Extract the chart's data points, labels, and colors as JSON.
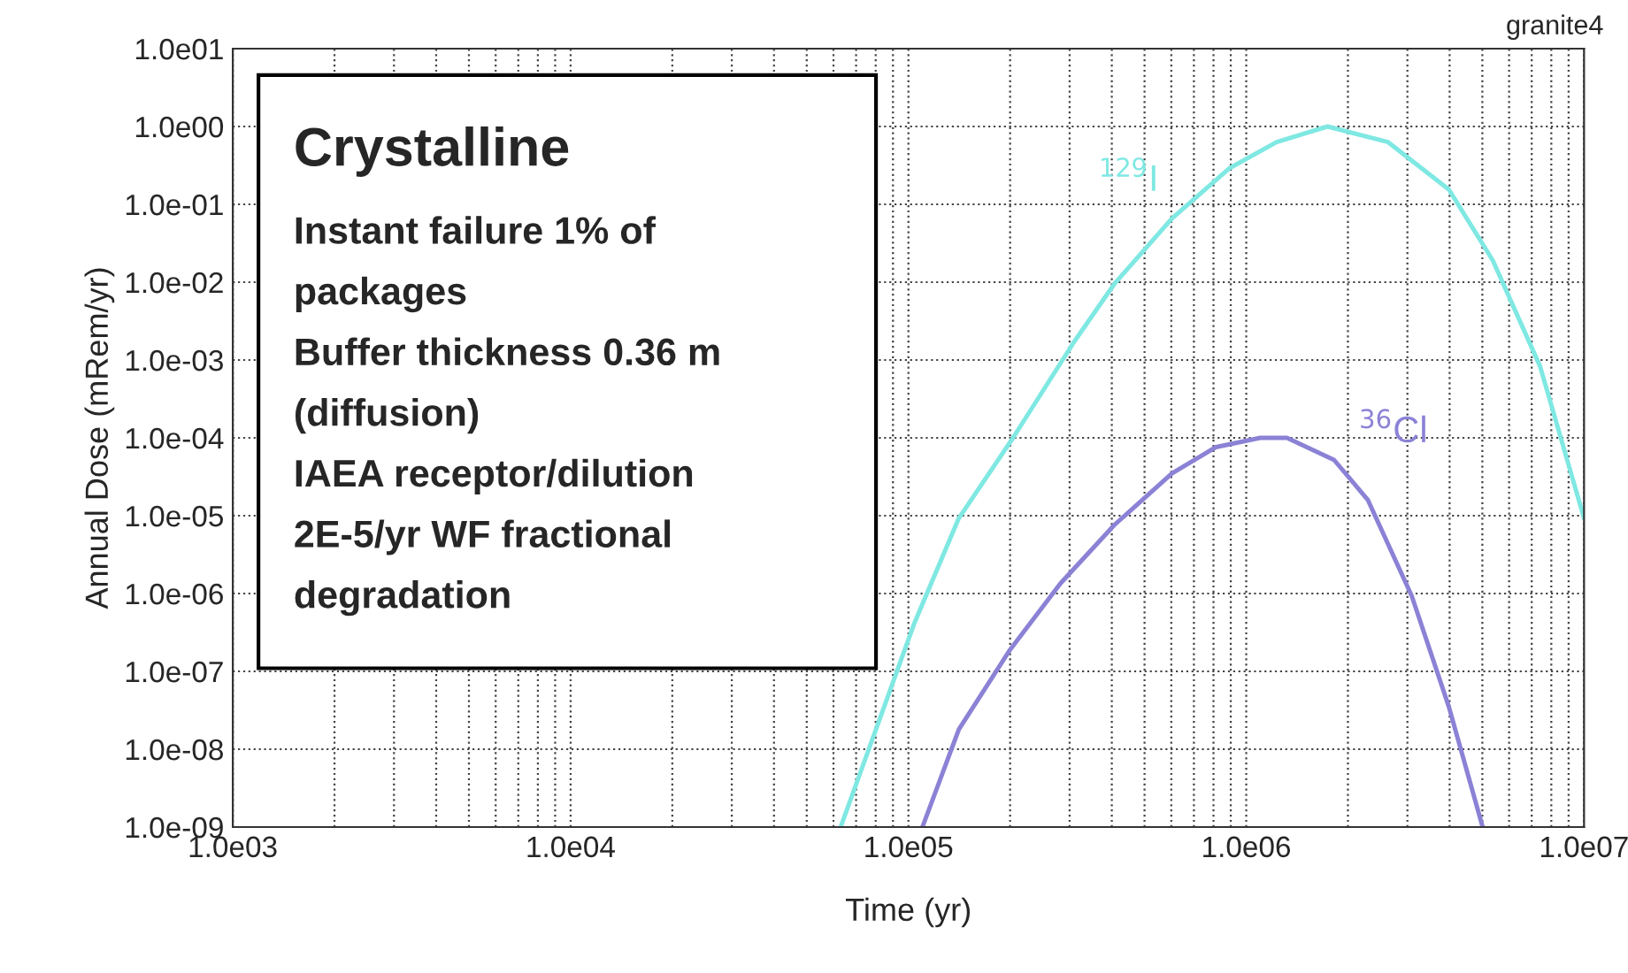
{
  "chart_data": {
    "type": "line",
    "xlabel": "Time (yr)",
    "ylabel": "Annual Dose (mRem/yr)",
    "log": "xy",
    "grid": true,
    "legend": false,
    "marker": "none",
    "line_style": "solid",
    "xlim": [
      1000,
      10000000
    ],
    "xticks": [
      {
        "value": 1000,
        "label": "1.0e03"
      },
      {
        "value": 10000,
        "label": "1.0e04"
      },
      {
        "value": 100000,
        "label": "1.0e05"
      },
      {
        "value": 1000000,
        "label": "1.0e06"
      },
      {
        "value": 10000000,
        "label": "1.0e07"
      }
    ],
    "ylim": [
      1e-09,
      10
    ],
    "yticks": [
      {
        "value": 10,
        "label": "1.0e01"
      },
      {
        "value": 1,
        "label": "1.0e00"
      },
      {
        "value": 0.1,
        "label": "1.0e-01"
      },
      {
        "value": 0.01,
        "label": "1.0e-02"
      },
      {
        "value": 0.001,
        "label": "1.0e-03"
      },
      {
        "value": 0.0001,
        "label": "1.0e-04"
      },
      {
        "value": 1e-05,
        "label": "1.0e-05"
      },
      {
        "value": 1e-06,
        "label": "1.0e-06"
      },
      {
        "value": 1e-07,
        "label": "1.0e-07"
      },
      {
        "value": 1e-08,
        "label": "1.0e-08"
      },
      {
        "value": 1e-09,
        "label": "1.0e-09"
      }
    ],
    "series": [
      {
        "name": "$^{129}$I",
        "color": "#7fe8e2",
        "x": [
          63000,
          104000,
          141000,
          204000,
          309000,
          407000,
          603000,
          891000,
          1230000,
          1740000,
          2630000,
          3980000,
          5370000,
          7410000,
          10000000
        ],
        "values": [
          1e-09,
          4.1e-07,
          9.3e-06,
          0.0001,
          0.0017,
          0.0095,
          0.066,
          0.29,
          0.63,
          1.0,
          0.63,
          0.155,
          0.019,
          0.00083,
          9.3e-06
        ]
      },
      {
        "name": "$^{36}$Cl",
        "color": "#8b82d6",
        "x": [
          110000,
          141000,
          200000,
          282000,
          407000,
          603000,
          813000,
          1100000,
          1320000,
          1820000,
          2290000,
          3090000,
          3980000,
          5010000
        ],
        "values": [
          1e-09,
          1.8e-08,
          1.9e-07,
          1.35e-06,
          7.6e-06,
          3.5e-05,
          7.6e-05,
          0.0001,
          0.0001,
          5.2e-05,
          1.6e-05,
          9.3e-07,
          3.5e-08,
          1e-09
        ]
      }
    ],
    "annotations": [
      "granite4",
      "Crystalline",
      "Instant failure 1% of",
      "packages",
      "Buffer thickness 0.36 m",
      "(diffusion)",
      "IAEA receptor/dilution",
      "2E-5/yr WF fractional",
      "degradation"
    ]
  }
}
